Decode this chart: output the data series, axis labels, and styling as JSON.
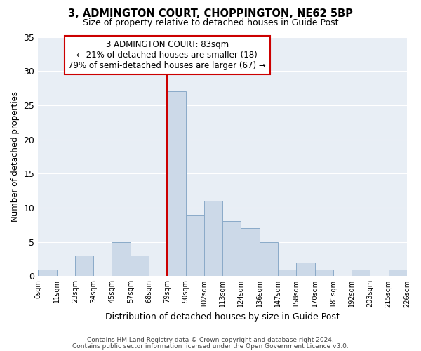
{
  "title": "3, ADMINGTON COURT, CHOPPINGTON, NE62 5BP",
  "subtitle": "Size of property relative to detached houses in Guide Post",
  "xlabel": "Distribution of detached houses by size in Guide Post",
  "ylabel": "Number of detached properties",
  "bin_labels": [
    "0sqm",
    "11sqm",
    "23sqm",
    "34sqm",
    "45sqm",
    "57sqm",
    "68sqm",
    "79sqm",
    "90sqm",
    "102sqm",
    "113sqm",
    "124sqm",
    "136sqm",
    "147sqm",
    "158sqm",
    "170sqm",
    "181sqm",
    "192sqm",
    "203sqm",
    "215sqm",
    "226sqm"
  ],
  "bar_values": [
    1,
    0,
    3,
    0,
    5,
    3,
    0,
    27,
    9,
    11,
    8,
    7,
    5,
    1,
    2,
    1,
    0,
    1,
    0,
    1
  ],
  "bar_color": "#ccd9e8",
  "bar_edge_color": "#8aaac8",
  "marker_bin_index": 7,
  "marker_color": "#cc0000",
  "ylim": [
    0,
    35
  ],
  "yticks": [
    0,
    5,
    10,
    15,
    20,
    25,
    30,
    35
  ],
  "annotation_title": "3 ADMINGTON COURT: 83sqm",
  "annotation_line1": "← 21% of detached houses are smaller (18)",
  "annotation_line2": "79% of semi-detached houses are larger (67) →",
  "annotation_box_color": "#ffffff",
  "annotation_box_edge": "#cc0000",
  "footer1": "Contains HM Land Registry data © Crown copyright and database right 2024.",
  "footer2": "Contains public sector information licensed under the Open Government Licence v3.0.",
  "background_color": "#ffffff",
  "plot_bg_color": "#e8eef5",
  "grid_color": "#ffffff"
}
